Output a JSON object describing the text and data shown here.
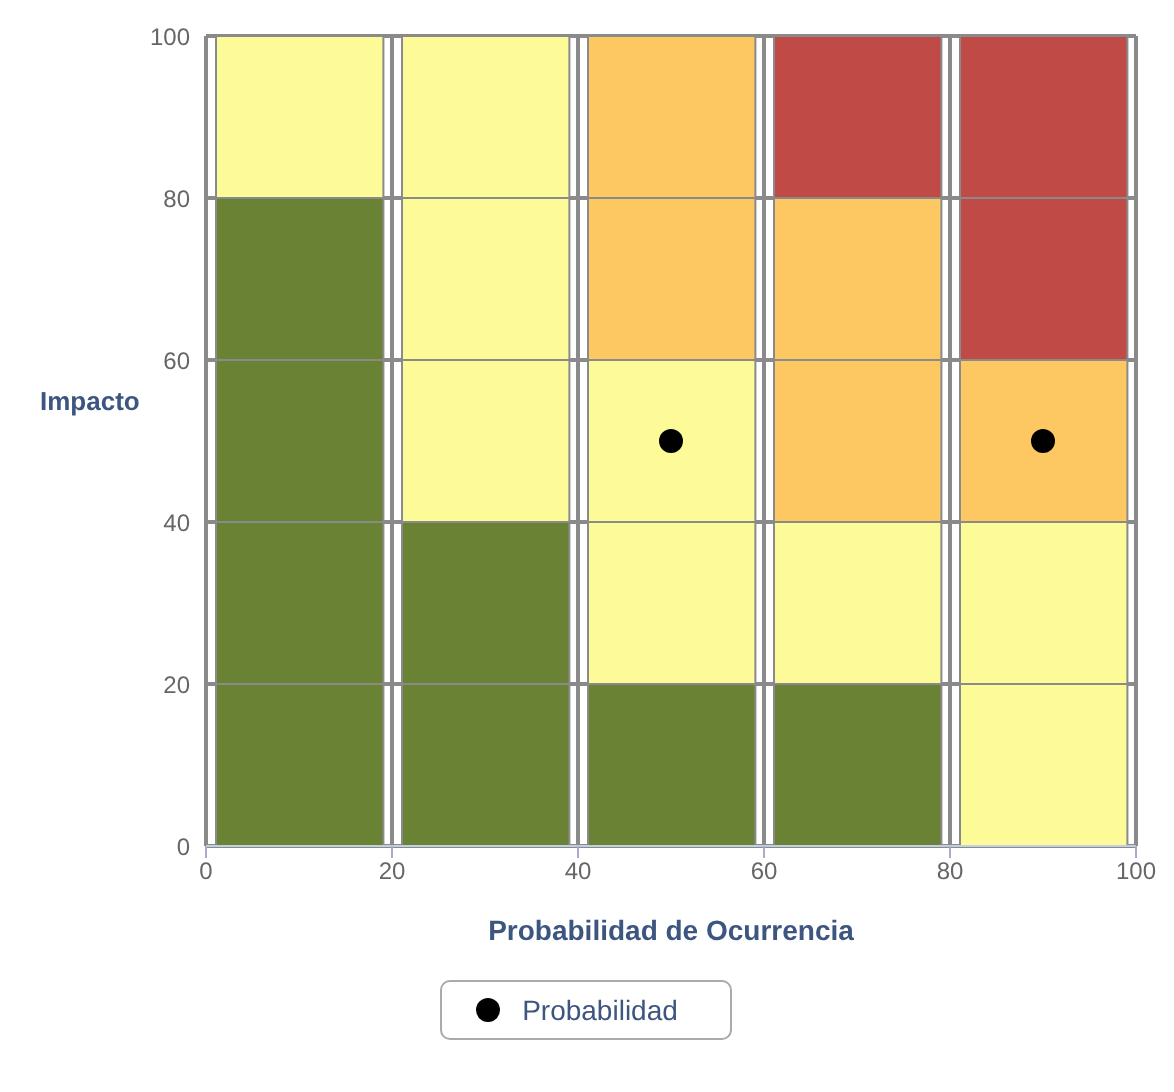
{
  "chart_data": {
    "type": "bar",
    "stacked": true,
    "xlabel": "Probabilidad de Ocurrencia",
    "ylabel": "Impacto",
    "x": [
      10,
      30,
      50,
      70,
      90
    ],
    "xlim": [
      0,
      100
    ],
    "ylim": [
      0,
      100
    ],
    "xticks": [
      0,
      20,
      40,
      60,
      80,
      100
    ],
    "yticks": [
      0,
      20,
      40,
      60,
      80,
      100
    ],
    "grid": true,
    "legend": "bottom",
    "marker": "circle",
    "series": [
      {
        "values": [
          20,
          20,
          20,
          20,
          20
        ],
        "colors": [
          "#6a8233",
          "#6a8233",
          "#6a8233",
          "#6a8233",
          "#fdfb98"
        ]
      },
      {
        "values": [
          20,
          20,
          20,
          20,
          20
        ],
        "colors": [
          "#6a8233",
          "#6a8233",
          "#fdfb98",
          "#fdfb98",
          "#fdfb98"
        ]
      },
      {
        "values": [
          20,
          20,
          20,
          20,
          20
        ],
        "colors": [
          "#6a8233",
          "#fdfb98",
          "#fdfb98",
          "#fdc862",
          "#fdc862"
        ]
      },
      {
        "values": [
          20,
          20,
          20,
          20,
          20
        ],
        "colors": [
          "#6a8233",
          "#fdfb98",
          "#fdc862",
          "#fdc862",
          "#bf4a46"
        ]
      },
      {
        "values": [
          20,
          20,
          20,
          20,
          20
        ],
        "colors": [
          "#fdfb98",
          "#fdfb98",
          "#fdc862",
          "#bf4a46",
          "#bf4a46"
        ]
      },
      {
        "type": "scatter",
        "name": "Probabilidad",
        "color": "#000000",
        "x": [
          50,
          90
        ],
        "values": [
          50,
          50
        ]
      }
    ]
  }
}
